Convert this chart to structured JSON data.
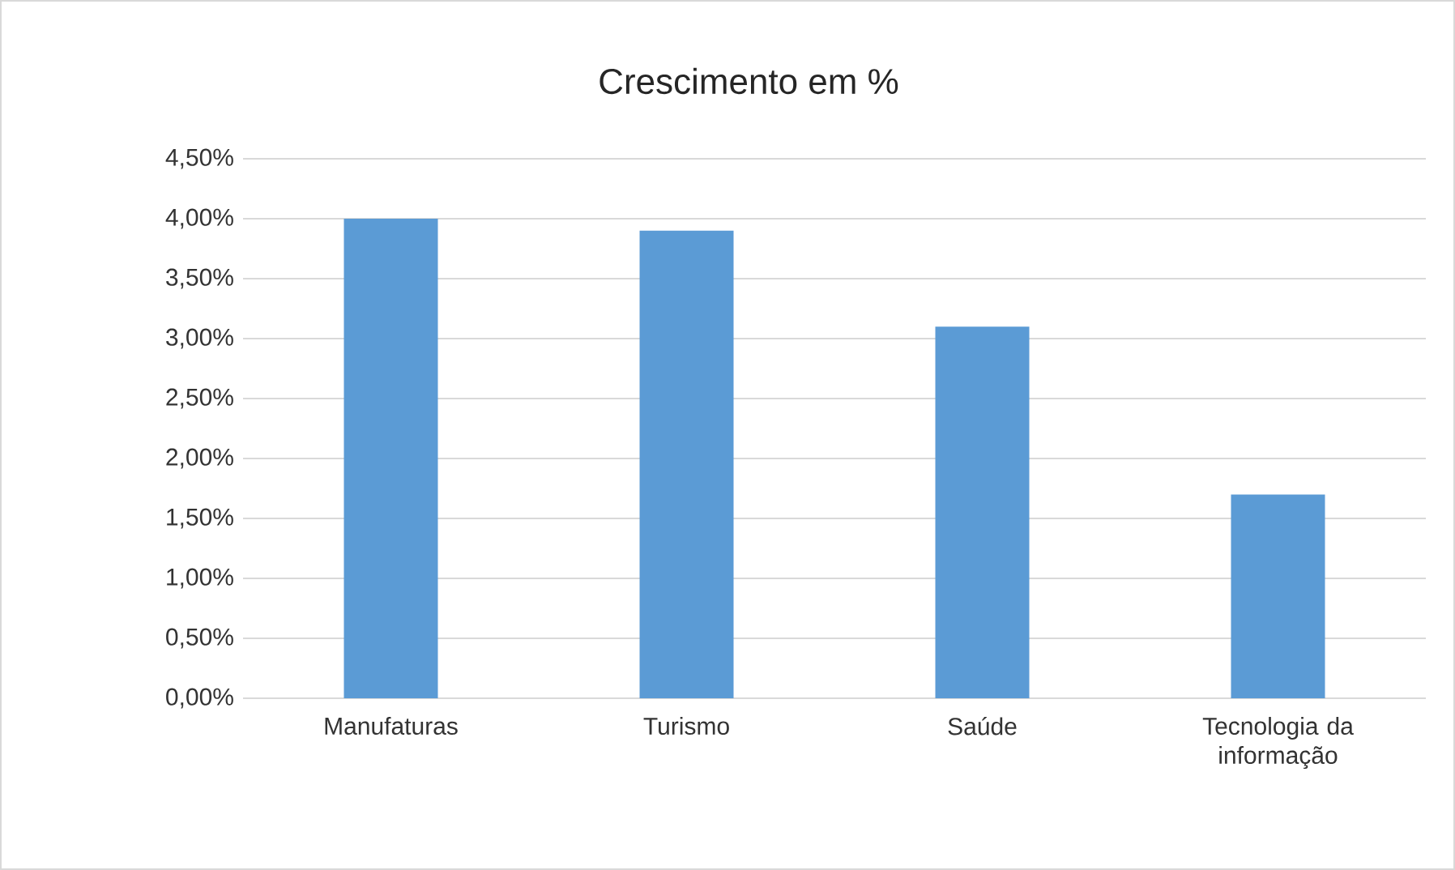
{
  "chart_data": {
    "type": "bar",
    "title": "Crescimento em %",
    "categories": [
      "Manufaturas",
      "Turismo",
      "Saúde",
      "Tecnologia da informação"
    ],
    "values": [
      4.0,
      3.9,
      3.1,
      1.7
    ],
    "color": "#5b9bd5",
    "ylim": [
      0,
      4.5
    ],
    "yticks": [
      {
        "value": 0,
        "label": "0,00%"
      },
      {
        "value": 0.5,
        "label": "0,50%"
      },
      {
        "value": 1,
        "label": "1,00%"
      },
      {
        "value": 1.5,
        "label": "1,50%"
      },
      {
        "value": 2,
        "label": "2,00%"
      },
      {
        "value": 2.5,
        "label": "2,50%"
      },
      {
        "value": 3,
        "label": "3,00%"
      },
      {
        "value": 3.5,
        "label": "3,50%"
      },
      {
        "value": 4,
        "label": "4,00%"
      },
      {
        "value": 4.5,
        "label": "4,50%"
      }
    ],
    "grid": "y"
  }
}
